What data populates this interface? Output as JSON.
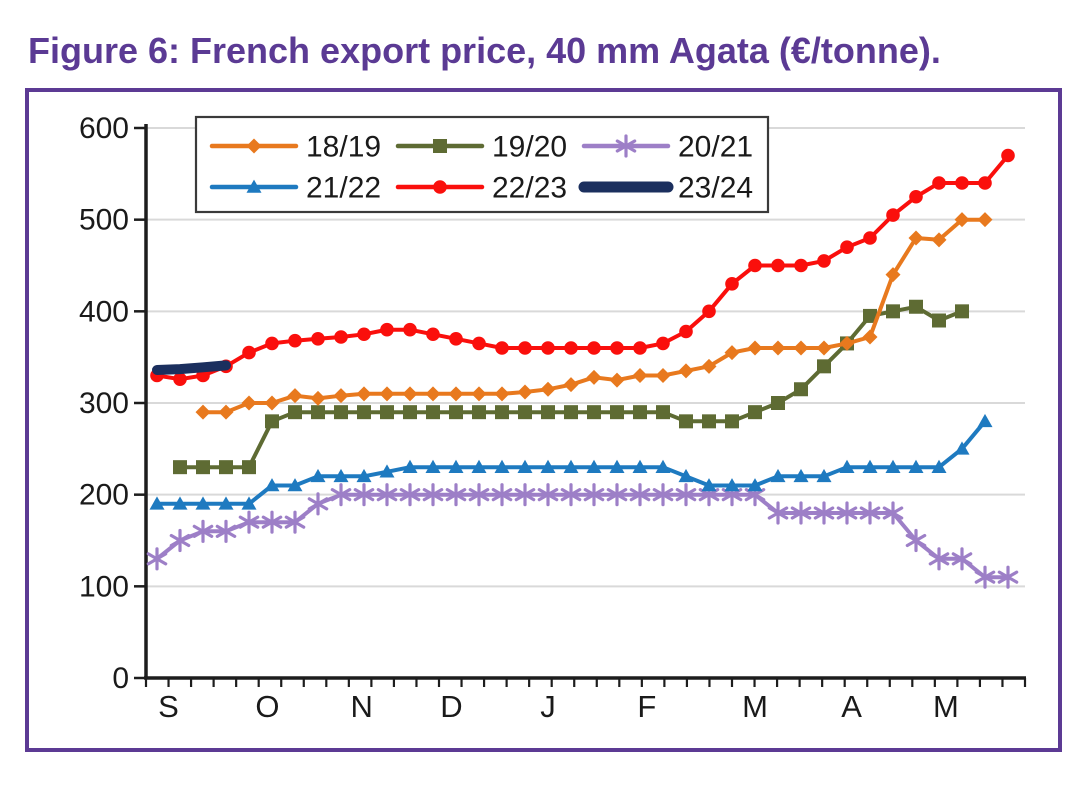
{
  "chart_data": {
    "type": "line",
    "title": "Figure 6: French export price, 40 mm Agata (€/tonne).",
    "subtitle": "",
    "ylabel": "",
    "xlabel": "",
    "ylim": [
      0,
      600
    ],
    "y_axis": {
      "ticks": [
        0,
        100,
        200,
        300,
        400,
        500,
        600
      ]
    },
    "x_axis": {
      "unit": "weekly (September through May)",
      "weeks_total": 38,
      "months": [
        {
          "label": "S",
          "week": 0.5
        },
        {
          "label": "O",
          "week": 4.8
        },
        {
          "label": "N",
          "week": 8.9
        },
        {
          "label": "D",
          "week": 12.8
        },
        {
          "label": "J",
          "week": 17.0
        },
        {
          "label": "F",
          "week": 21.3
        },
        {
          "label": "M",
          "week": 26.0
        },
        {
          "label": "A",
          "week": 30.2
        },
        {
          "label": "M",
          "week": 34.3
        }
      ]
    },
    "grid": "horizontal",
    "legend_position": "top-center, boxed, 2 rows x 3 columns",
    "series": [
      {
        "name": "18/19",
        "color": "#e8791e",
        "marker": "diamond",
        "start_week": 2,
        "values": [
          290,
          290,
          300,
          300,
          308,
          305,
          308,
          310,
          310,
          310,
          310,
          310,
          310,
          310,
          312,
          315,
          320,
          328,
          325,
          330,
          330,
          335,
          340,
          355,
          360,
          360,
          360,
          360,
          365,
          372,
          440,
          480,
          478,
          500,
          500
        ]
      },
      {
        "name": "19/20",
        "color": "#5e6b33",
        "marker": "square",
        "start_week": 1,
        "values": [
          230,
          230,
          230,
          230,
          280,
          290,
          290,
          290,
          290,
          290,
          290,
          290,
          290,
          290,
          290,
          290,
          290,
          290,
          290,
          290,
          290,
          290,
          280,
          280,
          280,
          290,
          300,
          315,
          340,
          365,
          395,
          400,
          405,
          390,
          400
        ]
      },
      {
        "name": "20/21",
        "color": "#9d7fc7",
        "marker": "asterisk",
        "start_week": 0,
        "values": [
          130,
          150,
          160,
          160,
          170,
          170,
          170,
          190,
          200,
          200,
          200,
          200,
          200,
          200,
          200,
          200,
          200,
          200,
          200,
          200,
          200,
          200,
          200,
          200,
          200,
          200,
          200,
          180,
          180,
          180,
          180,
          180,
          180,
          150,
          130,
          130,
          110,
          110
        ]
      },
      {
        "name": "21/22",
        "color": "#1e7ac0",
        "marker": "triangle",
        "start_week": 0,
        "values": [
          190,
          190,
          190,
          190,
          190,
          210,
          210,
          220,
          220,
          220,
          225,
          230,
          230,
          230,
          230,
          230,
          230,
          230,
          230,
          230,
          230,
          230,
          230,
          220,
          210,
          210,
          210,
          220,
          220,
          220,
          230,
          230,
          230,
          230,
          230,
          250,
          280
        ]
      },
      {
        "name": "22/23",
        "color": "#fa0f0c",
        "marker": "circle",
        "start_week": 0,
        "values": [
          330,
          326,
          330,
          340,
          355,
          365,
          368,
          370,
          372,
          375,
          380,
          380,
          375,
          370,
          365,
          360,
          360,
          360,
          360,
          360,
          360,
          360,
          365,
          378,
          400,
          430,
          450,
          450,
          450,
          455,
          470,
          480,
          505,
          525,
          540,
          540,
          540,
          570
        ]
      },
      {
        "name": "23/24",
        "color": "#1b2f5e",
        "marker": "none",
        "line_width": 10,
        "start_week": 0,
        "values": [
          336,
          337,
          339,
          341
        ]
      }
    ],
    "colors": {
      "title": "#5b3a94",
      "frame_border": "#5c3a94",
      "axis": "#1d1d1d",
      "gridline": "#d9d9d9",
      "legend_border": "#3a3a3a",
      "label_text": "#1a1a1a"
    }
  }
}
